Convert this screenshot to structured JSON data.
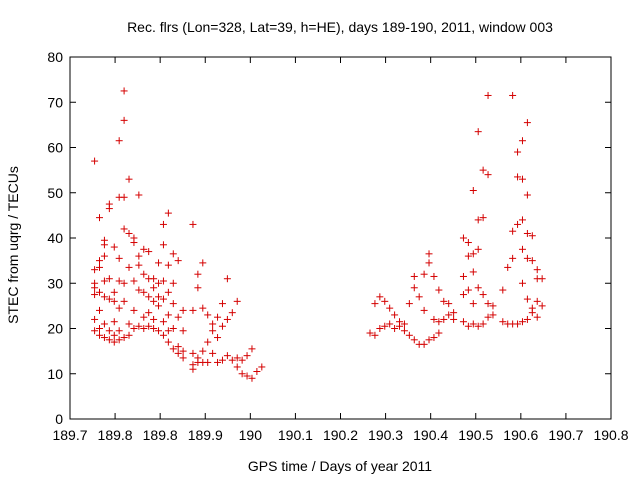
{
  "chart_data": {
    "type": "scatter",
    "title": "Rec. flrs (Lon=328, Lat=39, h=HE), days 189-190, 2011, window 003",
    "xlabel": "GPS time / Days of year 2011",
    "ylabel": "STEC from uqrg / TECUs",
    "xlim": [
      189.7,
      190.8
    ],
    "ylim": [
      0,
      80
    ],
    "xticks": [
      "189.7",
      "189.8",
      "189.8",
      "189.9",
      "190",
      "190.1",
      "190.2",
      "190.3",
      "190.4",
      "190.5",
      "190.6",
      "190.7",
      "190.8"
    ],
    "xtick_values": [
      189.7,
      189.75,
      189.8,
      189.9,
      190.0,
      190.1,
      190.2,
      190.3,
      190.4,
      190.5,
      190.6,
      190.7,
      190.8
    ],
    "yticks": [
      "0",
      "10",
      "20",
      "30",
      "40",
      "50",
      "60",
      "70",
      "80"
    ],
    "ytick_values": [
      0,
      10,
      20,
      30,
      40,
      50,
      60,
      70,
      80
    ],
    "grid": false,
    "marker": "+",
    "marker_color": "#d40000",
    "points": [
      [
        189.75,
        57.0
      ],
      [
        189.75,
        33.0
      ],
      [
        189.75,
        30.0
      ],
      [
        189.75,
        29.0
      ],
      [
        189.75,
        27.5
      ],
      [
        189.75,
        22.0
      ],
      [
        189.75,
        19.5
      ],
      [
        189.76,
        44.5
      ],
      [
        189.76,
        35.0
      ],
      [
        189.76,
        33.5
      ],
      [
        189.76,
        28.0
      ],
      [
        189.76,
        24.0
      ],
      [
        189.76,
        20.0
      ],
      [
        189.76,
        18.5
      ],
      [
        189.77,
        39.5
      ],
      [
        189.77,
        38.5
      ],
      [
        189.77,
        36.0
      ],
      [
        189.77,
        30.5
      ],
      [
        189.77,
        27.0
      ],
      [
        189.77,
        21.0
      ],
      [
        189.77,
        18.0
      ],
      [
        189.78,
        47.5
      ],
      [
        189.78,
        46.5
      ],
      [
        189.78,
        31.0
      ],
      [
        189.78,
        26.5
      ],
      [
        189.78,
        19.5
      ],
      [
        189.78,
        17.5
      ],
      [
        189.79,
        38.0
      ],
      [
        189.79,
        28.0
      ],
      [
        189.79,
        26.0
      ],
      [
        189.79,
        21.5
      ],
      [
        189.79,
        18.5
      ],
      [
        189.79,
        17.0
      ],
      [
        189.8,
        61.5
      ],
      [
        189.8,
        49.0
      ],
      [
        189.8,
        35.5
      ],
      [
        189.8,
        30.5
      ],
      [
        189.8,
        24.5
      ],
      [
        189.8,
        19.5
      ],
      [
        189.8,
        17.5
      ],
      [
        189.81,
        72.5
      ],
      [
        189.81,
        66.0
      ],
      [
        189.81,
        49.0
      ],
      [
        189.81,
        42.0
      ],
      [
        189.81,
        30.0
      ],
      [
        189.81,
        26.0
      ],
      [
        189.81,
        18.0
      ],
      [
        189.82,
        53.0
      ],
      [
        189.82,
        41.0
      ],
      [
        189.82,
        33.5
      ],
      [
        189.82,
        21.0
      ],
      [
        189.82,
        18.5
      ],
      [
        189.83,
        40.0
      ],
      [
        189.83,
        39.0
      ],
      [
        189.83,
        30.5
      ],
      [
        189.83,
        24.0
      ],
      [
        189.83,
        20.0
      ],
      [
        189.84,
        49.5
      ],
      [
        189.84,
        36.0
      ],
      [
        189.84,
        34.0
      ],
      [
        189.84,
        28.5
      ],
      [
        189.84,
        20.5
      ],
      [
        189.85,
        37.5
      ],
      [
        189.85,
        32.0
      ],
      [
        189.85,
        28.0
      ],
      [
        189.85,
        22.5
      ],
      [
        189.85,
        20.0
      ],
      [
        189.86,
        37.0
      ],
      [
        189.86,
        31.0
      ],
      [
        189.86,
        27.0
      ],
      [
        189.86,
        23.5
      ],
      [
        189.86,
        20.5
      ],
      [
        189.87,
        31.0
      ],
      [
        189.87,
        29.0
      ],
      [
        189.87,
        26.0
      ],
      [
        189.87,
        22.0
      ],
      [
        189.87,
        20.0
      ],
      [
        189.88,
        34.5
      ],
      [
        189.88,
        30.0
      ],
      [
        189.88,
        27.0
      ],
      [
        189.88,
        25.0
      ],
      [
        189.88,
        19.5
      ],
      [
        189.89,
        43.0
      ],
      [
        189.89,
        38.5
      ],
      [
        189.89,
        30.5
      ],
      [
        189.89,
        26.5
      ],
      [
        189.89,
        21.5
      ],
      [
        189.89,
        18.5
      ],
      [
        189.9,
        45.5
      ],
      [
        189.9,
        34.0
      ],
      [
        189.9,
        28.0
      ],
      [
        189.9,
        23.0
      ],
      [
        189.9,
        19.5
      ],
      [
        189.9,
        17.0
      ],
      [
        189.91,
        36.5
      ],
      [
        189.91,
        30.0
      ],
      [
        189.91,
        25.5
      ],
      [
        189.91,
        20.0
      ],
      [
        189.91,
        15.5
      ],
      [
        189.92,
        35.0
      ],
      [
        189.92,
        22.5
      ],
      [
        189.92,
        16.0
      ],
      [
        189.92,
        14.5
      ],
      [
        189.93,
        24.0
      ],
      [
        189.93,
        19.5
      ],
      [
        189.93,
        15.0
      ],
      [
        189.93,
        13.5
      ],
      [
        189.95,
        43.0
      ],
      [
        189.95,
        24.0
      ],
      [
        189.95,
        14.5
      ],
      [
        189.95,
        12.0
      ],
      [
        189.95,
        11.0
      ],
      [
        189.96,
        32.0
      ],
      [
        189.96,
        29.0
      ],
      [
        189.96,
        13.5
      ],
      [
        189.96,
        12.5
      ],
      [
        189.97,
        34.5
      ],
      [
        189.97,
        24.5
      ],
      [
        189.97,
        15.0
      ],
      [
        189.97,
        12.5
      ],
      [
        189.98,
        23.0
      ],
      [
        189.98,
        17.0
      ],
      [
        189.98,
        12.5
      ],
      [
        189.99,
        21.0
      ],
      [
        189.99,
        19.5
      ],
      [
        189.99,
        14.5
      ],
      [
        190.0,
        22.5
      ],
      [
        190.0,
        18.0
      ],
      [
        190.0,
        12.5
      ],
      [
        190.01,
        25.5
      ],
      [
        190.01,
        20.5
      ],
      [
        190.01,
        13.0
      ],
      [
        190.02,
        31.0
      ],
      [
        190.02,
        22.0
      ],
      [
        190.02,
        14.0
      ],
      [
        190.03,
        23.5
      ],
      [
        190.03,
        13.0
      ],
      [
        190.04,
        26.0
      ],
      [
        190.04,
        13.5
      ],
      [
        190.04,
        11.5
      ],
      [
        190.05,
        13.0
      ],
      [
        190.05,
        10.0
      ],
      [
        190.06,
        14.0
      ],
      [
        190.06,
        9.5
      ],
      [
        190.07,
        15.5
      ],
      [
        190.07,
        9.0
      ],
      [
        190.08,
        10.5
      ],
      [
        190.09,
        11.5
      ],
      [
        190.31,
        19.0
      ],
      [
        190.32,
        18.5
      ],
      [
        190.32,
        25.5
      ],
      [
        190.33,
        27.0
      ],
      [
        190.33,
        20.0
      ],
      [
        190.34,
        26.0
      ],
      [
        190.34,
        20.5
      ],
      [
        190.35,
        24.5
      ],
      [
        190.35,
        21.0
      ],
      [
        190.36,
        23.0
      ],
      [
        190.36,
        20.0
      ],
      [
        190.37,
        21.5
      ],
      [
        190.37,
        20.5
      ],
      [
        190.38,
        21.0
      ],
      [
        190.38,
        19.5
      ],
      [
        190.39,
        25.5
      ],
      [
        190.39,
        18.5
      ],
      [
        190.4,
        31.5
      ],
      [
        190.4,
        29.0
      ],
      [
        190.4,
        17.5
      ],
      [
        190.41,
        27.0
      ],
      [
        190.41,
        16.5
      ],
      [
        190.42,
        32.0
      ],
      [
        190.42,
        24.0
      ],
      [
        190.42,
        16.5
      ],
      [
        190.43,
        36.5
      ],
      [
        190.43,
        34.5
      ],
      [
        190.43,
        17.5
      ],
      [
        190.44,
        31.5
      ],
      [
        190.44,
        22.0
      ],
      [
        190.44,
        18.0
      ],
      [
        190.45,
        28.5
      ],
      [
        190.45,
        21.5
      ],
      [
        190.45,
        19.0
      ],
      [
        190.46,
        26.0
      ],
      [
        190.46,
        22.0
      ],
      [
        190.47,
        25.5
      ],
      [
        190.47,
        23.0
      ],
      [
        190.48,
        23.5
      ],
      [
        190.48,
        22.0
      ],
      [
        190.5,
        40.0
      ],
      [
        190.5,
        31.5
      ],
      [
        190.5,
        27.5
      ],
      [
        190.5,
        21.5
      ],
      [
        190.51,
        39.0
      ],
      [
        190.51,
        36.0
      ],
      [
        190.51,
        28.5
      ],
      [
        190.51,
        20.5
      ],
      [
        190.52,
        50.5
      ],
      [
        190.52,
        36.5
      ],
      [
        190.52,
        32.5
      ],
      [
        190.52,
        25.5
      ],
      [
        190.52,
        21.0
      ],
      [
        190.53,
        63.5
      ],
      [
        190.53,
        44.0
      ],
      [
        190.53,
        37.5
      ],
      [
        190.53,
        29.0
      ],
      [
        190.53,
        20.5
      ],
      [
        190.54,
        55.0
      ],
      [
        190.54,
        44.5
      ],
      [
        190.54,
        27.5
      ],
      [
        190.54,
        21.0
      ],
      [
        190.55,
        71.5
      ],
      [
        190.55,
        54.0
      ],
      [
        190.55,
        25.5
      ],
      [
        190.55,
        22.5
      ],
      [
        190.56,
        23.0
      ],
      [
        190.56,
        25.0
      ],
      [
        190.58,
        28.5
      ],
      [
        190.58,
        21.5
      ],
      [
        190.59,
        33.5
      ],
      [
        190.59,
        21.0
      ],
      [
        190.6,
        71.5
      ],
      [
        190.6,
        41.5
      ],
      [
        190.6,
        35.5
      ],
      [
        190.6,
        21.0
      ],
      [
        190.61,
        59.0
      ],
      [
        190.61,
        53.5
      ],
      [
        190.61,
        43.0
      ],
      [
        190.61,
        21.0
      ],
      [
        190.62,
        61.5
      ],
      [
        190.62,
        53.0
      ],
      [
        190.62,
        44.0
      ],
      [
        190.62,
        37.5
      ],
      [
        190.62,
        30.0
      ],
      [
        190.62,
        21.5
      ],
      [
        190.63,
        65.5
      ],
      [
        190.63,
        49.5
      ],
      [
        190.63,
        41.0
      ],
      [
        190.63,
        35.5
      ],
      [
        190.63,
        26.5
      ],
      [
        190.63,
        22.0
      ],
      [
        190.64,
        40.5
      ],
      [
        190.64,
        35.0
      ],
      [
        190.64,
        24.5
      ],
      [
        190.64,
        23.5
      ],
      [
        190.65,
        33.0
      ],
      [
        190.65,
        31.0
      ],
      [
        190.65,
        26.0
      ],
      [
        190.65,
        22.5
      ],
      [
        190.66,
        31.0
      ],
      [
        190.66,
        25.0
      ]
    ]
  }
}
